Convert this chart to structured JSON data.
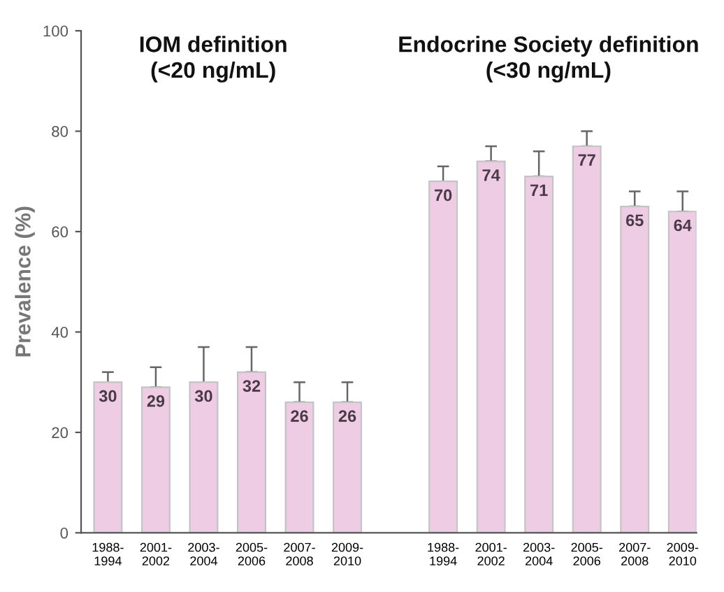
{
  "chart_data": {
    "type": "bar",
    "ylabel": "Prevalence (%)",
    "categories": [
      "1988-\n1994",
      "2001-\n2002",
      "2003-\n2004",
      "2005-\n2006",
      "2007-\n2008",
      "2009-\n2010",
      null,
      "1988-\n1994",
      "2001-\n2002",
      "2003-\n2004",
      "2005-\n2006",
      "2007-\n2008",
      "2009-\n2010"
    ],
    "values": [
      30,
      29,
      30,
      32,
      26,
      26,
      null,
      70,
      74,
      71,
      77,
      65,
      64
    ],
    "errors": [
      [
        30,
        32
      ],
      [
        29,
        33
      ],
      [
        30,
        37
      ],
      [
        32,
        37
      ],
      [
        26,
        30
      ],
      [
        26,
        30
      ],
      null,
      [
        70,
        73
      ],
      [
        74,
        77
      ],
      [
        71,
        76
      ],
      [
        77,
        80
      ],
      [
        65,
        68
      ],
      [
        64,
        68
      ]
    ],
    "color": "#eecde4",
    "data_labels": true,
    "ylim": [
      0,
      100
    ],
    "yticks": [
      0,
      20,
      40,
      60,
      80,
      100
    ],
    "grid": false,
    "legend": false,
    "annotations": [
      "IOM definition\n(<20 ng/mL)",
      "Endocrine Society definition\n(<30 ng/mL)"
    ]
  }
}
